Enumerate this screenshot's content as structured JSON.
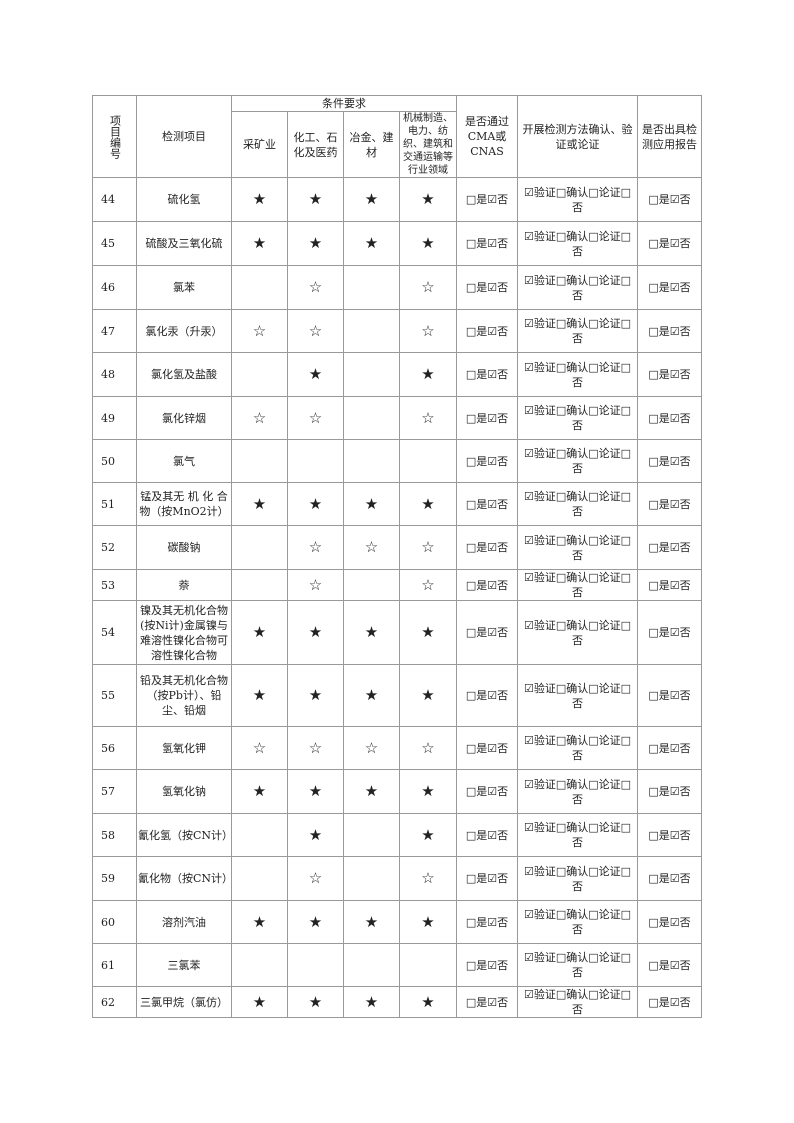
{
  "header": {
    "id": "项目编号",
    "item": "检测项目",
    "conditions": "条件要求",
    "c1": "采矿业",
    "c2": "化工、石化及医药",
    "c3": "冶金、建材",
    "c4": "机械制造、电力、纺织、建筑和交通运输等行业领域",
    "cma": "是否通过CMA或CNAS",
    "method": "开展检测方法确认、验证或论证",
    "report": "是否出具检测应用报告"
  },
  "rows": [
    {
      "id": "44",
      "name": "硫化氢",
      "m": [
        "★",
        "★",
        "★",
        "★"
      ],
      "cma": "□是☑否",
      "method": "☑验证□确认□论证□否",
      "report": "□是☑否"
    },
    {
      "id": "45",
      "name": "硫酸及三氧化硫",
      "m": [
        "★",
        "★",
        "★",
        "★"
      ],
      "cma": "□是☑否",
      "method": "☑验证□确认□论证□否",
      "report": "□是☑否"
    },
    {
      "id": "46",
      "name": "氯苯",
      "m": [
        "",
        "☆",
        "",
        "☆"
      ],
      "cma": "□是☑否",
      "method": "☑验证□确认□论证□否",
      "report": "□是☑否"
    },
    {
      "id": "47",
      "name": "氯化汞（升汞）",
      "m": [
        "☆",
        "☆",
        "",
        "☆"
      ],
      "cma": "□是☑否",
      "method": "☑验证□确认□论证□否",
      "report": "□是☑否"
    },
    {
      "id": "48",
      "name": "氯化氢及盐酸",
      "m": [
        "",
        "★",
        "",
        "★"
      ],
      "cma": "□是☑否",
      "method": "☑验证□确认□论证□否",
      "report": "□是☑否"
    },
    {
      "id": "49",
      "name": "氯化锌烟",
      "m": [
        "☆",
        "☆",
        "",
        "☆"
      ],
      "cma": "□是☑否",
      "method": "☑验证□确认□论证□否",
      "report": "□是☑否"
    },
    {
      "id": "50",
      "name": "氯气",
      "m": [
        "",
        "",
        "",
        ""
      ],
      "cma": "□是☑否",
      "method": "☑验证□确认□论证□否",
      "report": "□是☑否"
    },
    {
      "id": "51",
      "name": "锰及其无 机 化 合物（按MnO2计）",
      "m": [
        "★",
        "★",
        "★",
        "★"
      ],
      "cma": "□是☑否",
      "method": "☑验证□确认□论证□否",
      "report": "□是☑否"
    },
    {
      "id": "52",
      "name": "碳酸钠",
      "m": [
        "",
        "☆",
        "☆",
        "☆"
      ],
      "cma": "□是☑否",
      "method": "☑验证□确认□论证□否",
      "report": "□是☑否"
    },
    {
      "id": "53",
      "name": "萘",
      "m": [
        "",
        "☆",
        "",
        "☆"
      ],
      "cma": "□是☑否",
      "method": "☑验证□确认□论证□否",
      "report": "□是☑否"
    },
    {
      "id": "54",
      "name": "镍及其无机化合物(按Ni计)金属镍与难溶性镍化合物可溶性镍化合物",
      "m": [
        "★",
        "★",
        "★",
        "★"
      ],
      "cma": "□是☑否",
      "method": "☑验证□确认□论证□否",
      "report": "□是☑否"
    },
    {
      "id": "55",
      "name": "铅及其无机化合物（按Pb计）、铅尘、铅烟",
      "m": [
        "★",
        "★",
        "★",
        "★"
      ],
      "cma": "□是☑否",
      "method": "☑验证□确认□论证□否",
      "report": "□是☑否"
    },
    {
      "id": "56",
      "name": "氢氧化钾",
      "m": [
        "☆",
        "☆",
        "☆",
        "☆"
      ],
      "cma": "□是☑否",
      "method": "☑验证□确认□论证□否",
      "report": "□是☑否"
    },
    {
      "id": "57",
      "name": "氢氧化钠",
      "m": [
        "★",
        "★",
        "★",
        "★"
      ],
      "cma": "□是☑否",
      "method": "☑验证□确认□论证□否",
      "report": "□是☑否"
    },
    {
      "id": "58",
      "name": "氰化氢（按CN计）",
      "m": [
        "",
        "★",
        "",
        "★"
      ],
      "cma": "□是☑否",
      "method": "☑验证□确认□论证□否",
      "report": "□是☑否"
    },
    {
      "id": "59",
      "name": "氰化物（按CN计）",
      "m": [
        "",
        "☆",
        "",
        "☆"
      ],
      "cma": "□是☑否",
      "method": "☑验证□确认□论证□否",
      "report": "□是☑否"
    },
    {
      "id": "60",
      "name": "溶剂汽油",
      "m": [
        "★",
        "★",
        "★",
        "★"
      ],
      "cma": "□是☑否",
      "method": "☑验证□确认□论证□否",
      "report": "□是☑否"
    },
    {
      "id": "61",
      "name": "三氯苯",
      "m": [
        "",
        "",
        "",
        ""
      ],
      "cma": "□是☑否",
      "method": "☑验证□确认□论证□否",
      "report": "□是☑否"
    },
    {
      "id": "62",
      "name": "三氯甲烷（氯仿）",
      "m": [
        "★",
        "★",
        "★",
        "★"
      ],
      "cma": "□是☑否",
      "method": "☑验证□确认□论证□否",
      "report": "□是☑否"
    }
  ]
}
